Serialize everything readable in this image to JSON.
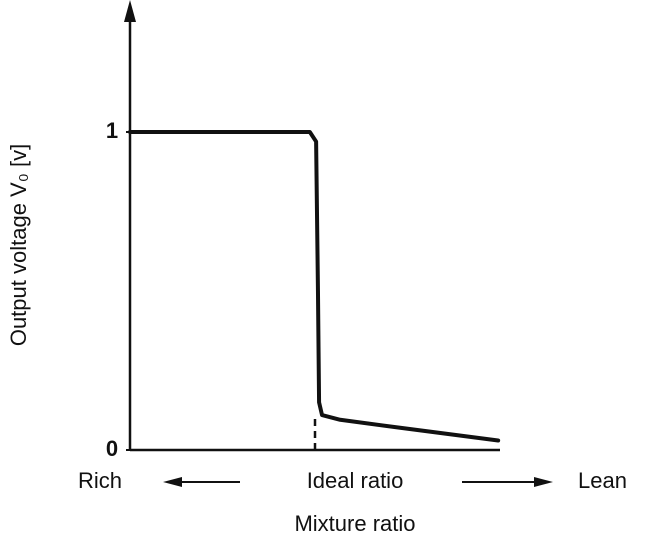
{
  "chart_data": {
    "type": "line",
    "y_label": "Output voltage V₀ [v]",
    "x_label": "Mixture ratio",
    "x_annotations": {
      "left": "Rich",
      "center": "Ideal ratio",
      "right": "Lean"
    },
    "reference_x": 5,
    "xlim": [
      0,
      10
    ],
    "ylim": [
      0,
      1.39
    ],
    "yticks": [
      0,
      1
    ],
    "series": [
      {
        "color": "#111111",
        "x": [
          0,
          4.86,
          5.03,
          5.08,
          5.11,
          5.19,
          5.68,
          7.3,
          9.95
        ],
        "values": [
          1,
          1,
          0.97,
          0.5,
          0.15,
          0.11,
          0.095,
          0.07,
          0.03
        ]
      }
    ]
  }
}
